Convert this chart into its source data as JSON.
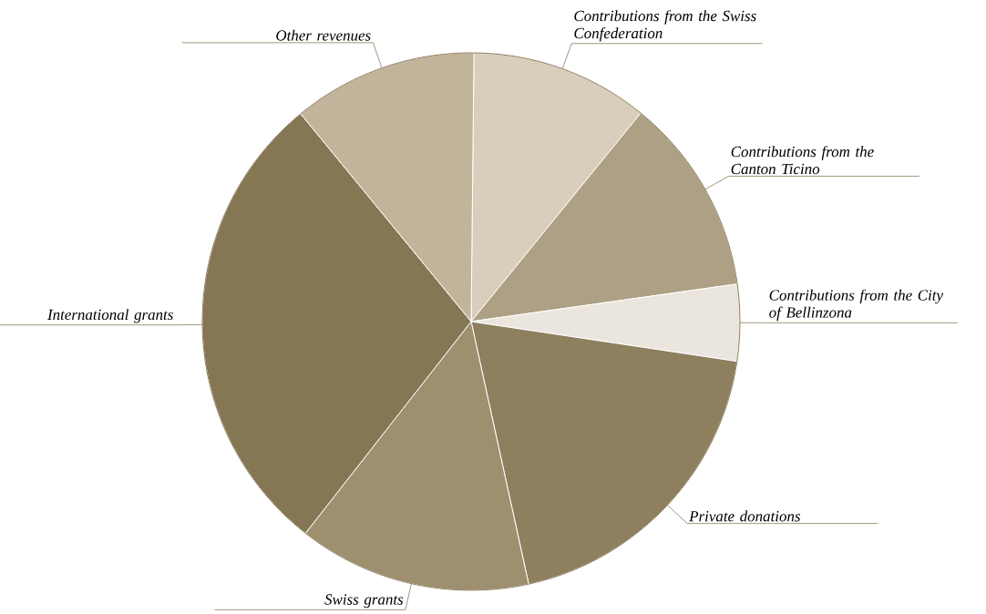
{
  "chart_data": {
    "type": "pie",
    "categories": [
      "Contributions from the Swiss Confederation",
      "Contributions from the Canton Ticino",
      "Contributions from the City of Bellinzona",
      "Private donations",
      "Swiss grants",
      "International grants",
      "Other revenues"
    ],
    "values": [
      10.7,
      11.9,
      4.6,
      19.2,
      14.0,
      28.5,
      11.1
    ],
    "colors": [
      "#d8cebb",
      "#aea084",
      "#ebe6dd",
      "#8e7f5e",
      "#9e8f6f",
      "#857654",
      "#c1b49b"
    ]
  }
}
